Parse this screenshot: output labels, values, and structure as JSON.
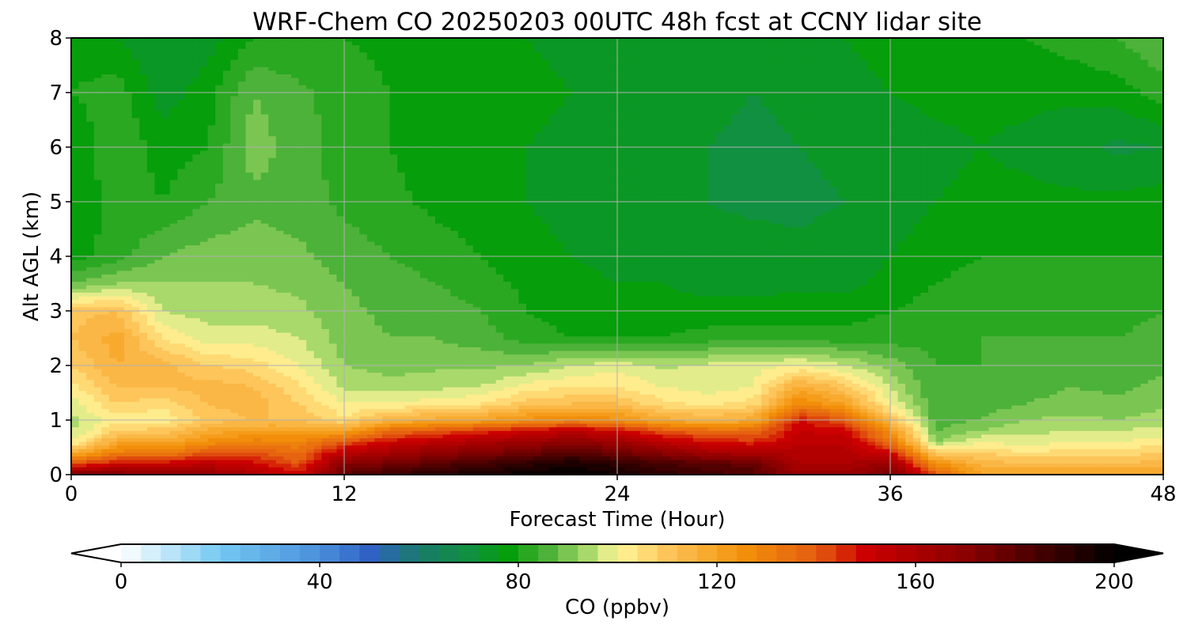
{
  "chart_data": {
    "type": "heatmap",
    "title": "WRF-Chem CO  20250203 00UTC 48h fcst at CCNY lidar site",
    "xlabel": "Forecast Time (Hour)",
    "ylabel": "Alt AGL (km)",
    "xlim": [
      0,
      48
    ],
    "ylim": [
      0,
      8
    ],
    "x_ticks": [
      0,
      12,
      24,
      36,
      48
    ],
    "x_tick_labels": [
      "0",
      "12",
      "24",
      "36",
      "48"
    ],
    "y_ticks": [
      0,
      1,
      2,
      3,
      4,
      5,
      6,
      7,
      8
    ],
    "y_tick_labels": [
      "0",
      "1",
      "2",
      "3",
      "4",
      "5",
      "6",
      "7",
      "8"
    ],
    "grid": true,
    "x": [
      0,
      2,
      4,
      6,
      8,
      10,
      12,
      14,
      16,
      18,
      20,
      22,
      24,
      26,
      28,
      30,
      32,
      34,
      36,
      38,
      40,
      42,
      44,
      46,
      48
    ],
    "y": [
      0,
      0.2,
      0.4,
      0.6,
      0.8,
      1.0,
      1.3,
      1.6,
      2.0,
      2.5,
      3.0,
      3.5,
      4.0,
      5.0,
      6.0,
      7.0,
      8.0
    ],
    "z": [
      [
        175,
        172,
        170,
        168,
        160,
        150,
        180,
        188,
        192,
        196,
        198,
        200,
        196,
        190,
        186,
        182,
        165,
        165,
        175,
        140,
        120,
        120,
        120,
        120,
        120
      ],
      [
        140,
        150,
        150,
        155,
        150,
        140,
        170,
        175,
        180,
        185,
        190,
        195,
        190,
        185,
        180,
        178,
        160,
        160,
        165,
        125,
        115,
        112,
        112,
        112,
        114
      ],
      [
        115,
        130,
        130,
        140,
        140,
        135,
        155,
        162,
        168,
        172,
        176,
        182,
        176,
        170,
        162,
        160,
        158,
        158,
        150,
        108,
        108,
        104,
        106,
        106,
        108
      ],
      [
        100,
        118,
        118,
        125,
        130,
        128,
        140,
        150,
        155,
        160,
        165,
        168,
        165,
        155,
        148,
        145,
        155,
        155,
        135,
        92,
        100,
        98,
        100,
        100,
        102
      ],
      [
        95,
        108,
        110,
        118,
        120,
        120,
        120,
        135,
        140,
        145,
        150,
        155,
        150,
        140,
        135,
        135,
        152,
        150,
        125,
        88,
        92,
        95,
        96,
        96,
        98
      ],
      [
        95,
        102,
        100,
        110,
        112,
        112,
        105,
        115,
        118,
        120,
        125,
        128,
        125,
        118,
        115,
        118,
        148,
        140,
        112,
        86,
        88,
        92,
        93,
        92,
        94
      ],
      [
        98,
        108,
        106,
        112,
        114,
        108,
        100,
        100,
        102,
        104,
        110,
        112,
        112,
        105,
        103,
        106,
        128,
        120,
        100,
        85,
        86,
        88,
        90,
        89,
        91
      ],
      [
        102,
        112,
        112,
        114,
        112,
        105,
        95,
        94,
        95,
        96,
        102,
        104,
        104,
        100,
        98,
        100,
        118,
        110,
        96,
        84,
        85,
        86,
        88,
        87,
        89
      ],
      [
        108,
        116,
        114,
        108,
        106,
        100,
        92,
        90,
        91,
        91,
        92,
        96,
        98,
        95,
        97,
        98,
        100,
        96,
        90,
        84,
        84,
        85,
        86,
        86,
        87
      ],
      [
        112,
        118,
        104,
        98,
        98,
        96,
        90,
        88,
        88,
        86,
        82,
        80,
        80,
        80,
        82,
        82,
        82,
        82,
        82,
        83,
        84,
        84,
        84,
        84,
        85
      ],
      [
        110,
        112,
        96,
        94,
        94,
        93,
        89,
        87,
        86,
        84,
        80,
        78,
        77,
        77,
        77,
        77,
        78,
        78,
        80,
        82,
        83,
        83,
        83,
        83,
        84
      ],
      [
        88,
        92,
        92,
        92,
        92,
        91,
        88,
        86,
        84,
        82,
        79,
        77,
        76,
        76,
        75,
        75,
        75,
        75,
        77,
        80,
        82,
        82,
        82,
        82,
        82
      ],
      [
        78,
        82,
        88,
        90,
        90,
        89,
        86,
        84,
        82,
        80,
        77,
        76,
        75,
        74,
        74,
        74,
        73,
        74,
        76,
        78,
        80,
        80,
        80,
        80,
        80
      ],
      [
        76,
        82,
        80,
        84,
        87,
        86,
        83,
        81,
        79,
        78,
        76,
        75,
        74,
        73,
        72,
        71,
        71,
        72,
        74,
        76,
        77,
        77,
        77,
        77,
        78
      ],
      [
        76,
        84,
        78,
        80,
        90,
        86,
        82,
        80,
        78,
        77,
        76,
        75,
        74,
        73,
        72,
        71,
        72,
        73,
        74,
        75,
        76,
        75,
        73,
        71,
        72
      ],
      [
        80,
        82,
        74,
        78,
        88,
        85,
        82,
        80,
        79,
        78,
        77,
        76,
        75,
        74,
        73,
        72,
        73,
        75,
        76,
        77,
        77,
        77,
        77,
        78,
        82
      ],
      [
        78,
        76,
        72,
        74,
        80,
        80,
        80,
        79,
        78,
        77,
        76,
        75,
        74,
        74,
        74,
        74,
        75,
        76,
        77,
        78,
        79,
        80,
        82,
        84,
        88
      ]
    ],
    "colorbar": {
      "label": "CO  (ppbv)",
      "min": 0,
      "max": 200,
      "ticks": [
        0,
        40,
        80,
        120,
        160,
        200
      ],
      "tick_labels": [
        "0",
        "40",
        "80",
        "120",
        "160",
        "200"
      ],
      "extend": "both",
      "orientation": "horizontal",
      "levels": 50,
      "colors": {
        "stops": [
          {
            "v": 0,
            "c": "#ffffff"
          },
          {
            "v": 20,
            "c": "#74c8f2"
          },
          {
            "v": 40,
            "c": "#4a8fdc"
          },
          {
            "v": 50,
            "c": "#2f62c4"
          },
          {
            "v": 60,
            "c": "#1a7a6a"
          },
          {
            "v": 70,
            "c": "#109040"
          },
          {
            "v": 78,
            "c": "#069e0a"
          },
          {
            "v": 86,
            "c": "#4db23a"
          },
          {
            "v": 94,
            "c": "#a8d96a"
          },
          {
            "v": 100,
            "c": "#fff69a"
          },
          {
            "v": 110,
            "c": "#fdc55a"
          },
          {
            "v": 125,
            "c": "#f3920a"
          },
          {
            "v": 140,
            "c": "#e45c10"
          },
          {
            "v": 150,
            "c": "#cc0000"
          },
          {
            "v": 170,
            "c": "#8b0000"
          },
          {
            "v": 200,
            "c": "#000000"
          }
        ]
      }
    }
  }
}
